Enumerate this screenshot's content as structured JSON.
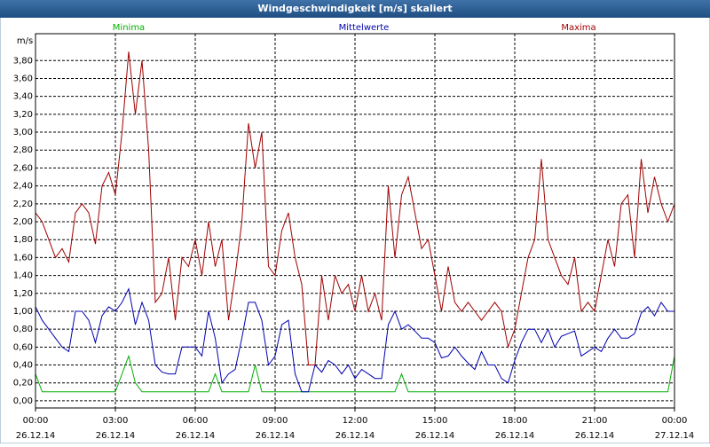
{
  "chart_data": {
    "type": "line",
    "title": "Windgeschwindigkeit [m/s] skaliert",
    "ylabel": "m/s",
    "xlim": [
      0,
      24
    ],
    "ylim": [
      -0.08,
      4.1
    ],
    "grid": true,
    "xticks": [
      {
        "value": 0,
        "label": "00:00",
        "date": "26.12.14"
      },
      {
        "value": 3,
        "label": "03:00",
        "date": "26.12.14"
      },
      {
        "value": 6,
        "label": "06:00",
        "date": "26.12.14"
      },
      {
        "value": 9,
        "label": "09:00",
        "date": "26.12.14"
      },
      {
        "value": 12,
        "label": "12:00",
        "date": "26.12.14"
      },
      {
        "value": 15,
        "label": "15:00",
        "date": "26.12.14"
      },
      {
        "value": 18,
        "label": "18:00",
        "date": "26.12.14"
      },
      {
        "value": 21,
        "label": "21:00",
        "date": "26.12.14"
      },
      {
        "value": 24,
        "label": "00:00",
        "date": "27.12.14"
      }
    ],
    "yticks": [
      {
        "value": 0,
        "label": "0,00"
      },
      {
        "value": 0.2,
        "label": "0,20"
      },
      {
        "value": 0.4,
        "label": "0,40"
      },
      {
        "value": 0.6,
        "label": "0,60"
      },
      {
        "value": 0.8,
        "label": "0,80"
      },
      {
        "value": 1.0,
        "label": "1,00"
      },
      {
        "value": 1.2,
        "label": "1,20"
      },
      {
        "value": 1.4,
        "label": "1,40"
      },
      {
        "value": 1.6,
        "label": "1,60"
      },
      {
        "value": 1.8,
        "label": "1,80"
      },
      {
        "value": 2.0,
        "label": "2,00"
      },
      {
        "value": 2.2,
        "label": "2,20"
      },
      {
        "value": 2.4,
        "label": "2,40"
      },
      {
        "value": 2.6,
        "label": "2,60"
      },
      {
        "value": 2.8,
        "label": "2,80"
      },
      {
        "value": 3.0,
        "label": "3,00"
      },
      {
        "value": 3.2,
        "label": "3,20"
      },
      {
        "value": 3.4,
        "label": "3,40"
      },
      {
        "value": 3.6,
        "label": "3,60"
      },
      {
        "value": 3.8,
        "label": "3,80"
      }
    ],
    "x": [
      0,
      0.25,
      0.5,
      0.75,
      1,
      1.25,
      1.5,
      1.75,
      2,
      2.25,
      2.5,
      2.75,
      3,
      3.25,
      3.5,
      3.75,
      4,
      4.25,
      4.5,
      4.75,
      5,
      5.25,
      5.5,
      5.75,
      6,
      6.25,
      6.5,
      6.75,
      7,
      7.25,
      7.5,
      7.75,
      8,
      8.25,
      8.5,
      8.75,
      9,
      9.25,
      9.5,
      9.75,
      10,
      10.25,
      10.5,
      10.75,
      11,
      11.25,
      11.5,
      11.75,
      12,
      12.25,
      12.5,
      12.75,
      13,
      13.25,
      13.5,
      13.75,
      14,
      14.25,
      14.5,
      14.75,
      15,
      15.25,
      15.5,
      15.75,
      16,
      16.25,
      16.5,
      16.75,
      17,
      17.25,
      17.5,
      17.75,
      18,
      18.25,
      18.5,
      18.75,
      19,
      19.25,
      19.5,
      19.75,
      20,
      20.25,
      20.5,
      20.75,
      21,
      21.25,
      21.5,
      21.75,
      22,
      22.25,
      22.5,
      22.75,
      23,
      23.25,
      23.5,
      23.75,
      24
    ],
    "series": [
      {
        "name": "Minima",
        "color": "#00b000",
        "values": [
          0.3,
          0.1,
          0.1,
          0.1,
          0.1,
          0.1,
          0.1,
          0.1,
          0.1,
          0.1,
          0.1,
          0.1,
          0.1,
          0.3,
          0.5,
          0.2,
          0.1,
          0.1,
          0.1,
          0.1,
          0.1,
          0.1,
          0.1,
          0.1,
          0.1,
          0.1,
          0.1,
          0.3,
          0.1,
          0.1,
          0.1,
          0.1,
          0.1,
          0.4,
          0.1,
          0.1,
          0.1,
          0.1,
          0.1,
          0.1,
          0.1,
          0.1,
          0.1,
          0.1,
          0.1,
          0.1,
          0.1,
          0.1,
          0.1,
          0.1,
          0.1,
          0.1,
          0.1,
          0.1,
          0.1,
          0.3,
          0.1,
          0.1,
          0.1,
          0.1,
          0.1,
          0.1,
          0.1,
          0.1,
          0.1,
          0.1,
          0.1,
          0.1,
          0.1,
          0.1,
          0.1,
          0.1,
          0.1,
          0.1,
          0.1,
          0.1,
          0.1,
          0.1,
          0.1,
          0.1,
          0.1,
          0.1,
          0.1,
          0.1,
          0.1,
          0.1,
          0.1,
          0.1,
          0.1,
          0.1,
          0.1,
          0.1,
          0.1,
          0.1,
          0.1,
          0.1,
          0.5
        ]
      },
      {
        "name": "Mittelwerte",
        "color": "#0000b0",
        "values": [
          1.05,
          0.9,
          0.8,
          0.7,
          0.6,
          0.55,
          1.0,
          1.0,
          0.9,
          0.65,
          0.95,
          1.05,
          1.0,
          1.1,
          1.25,
          0.85,
          1.1,
          0.9,
          0.4,
          0.32,
          0.3,
          0.3,
          0.6,
          0.6,
          0.6,
          0.5,
          1.0,
          0.7,
          0.2,
          0.3,
          0.35,
          0.7,
          1.1,
          1.1,
          0.9,
          0.4,
          0.5,
          0.85,
          0.9,
          0.3,
          0.1,
          0.1,
          0.4,
          0.32,
          0.45,
          0.4,
          0.3,
          0.4,
          0.25,
          0.35,
          0.3,
          0.25,
          0.25,
          0.85,
          1.0,
          0.8,
          0.85,
          0.78,
          0.7,
          0.7,
          0.65,
          0.48,
          0.5,
          0.6,
          0.5,
          0.42,
          0.35,
          0.55,
          0.4,
          0.4,
          0.25,
          0.2,
          0.45,
          0.65,
          0.8,
          0.8,
          0.65,
          0.8,
          0.6,
          0.72,
          0.75,
          0.78,
          0.5,
          0.55,
          0.6,
          0.55,
          0.7,
          0.8,
          0.7,
          0.7,
          0.75,
          0.98,
          1.05,
          0.95,
          1.1,
          1.0,
          1.0
        ]
      },
      {
        "name": "Maxima",
        "color": "#a00000",
        "values": [
          2.1,
          2.0,
          1.8,
          1.6,
          1.7,
          1.55,
          2.1,
          2.2,
          2.1,
          1.75,
          2.4,
          2.55,
          2.3,
          3.0,
          3.9,
          3.2,
          3.8,
          2.8,
          1.1,
          1.2,
          1.6,
          0.9,
          1.6,
          1.5,
          1.8,
          1.4,
          2.0,
          1.5,
          1.8,
          0.9,
          1.4,
          2.0,
          3.1,
          2.6,
          3.0,
          1.5,
          1.4,
          1.9,
          2.1,
          1.6,
          1.3,
          0.4,
          0.4,
          1.4,
          0.9,
          1.4,
          1.2,
          1.3,
          1.0,
          1.4,
          1.0,
          1.2,
          0.9,
          2.4,
          1.6,
          2.3,
          2.5,
          2.1,
          1.7,
          1.8,
          1.4,
          1.0,
          1.5,
          1.1,
          1.0,
          1.1,
          1.0,
          0.9,
          1.0,
          1.1,
          1.0,
          0.6,
          0.8,
          1.2,
          1.6,
          1.8,
          2.7,
          1.8,
          1.6,
          1.4,
          1.3,
          1.6,
          1.0,
          1.1,
          1.0,
          1.4,
          1.8,
          1.5,
          2.2,
          2.3,
          1.6,
          2.7,
          2.1,
          2.5,
          2.2,
          2.0,
          2.2
        ]
      }
    ]
  }
}
